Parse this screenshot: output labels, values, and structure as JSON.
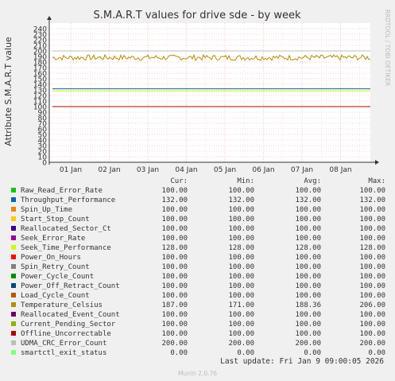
{
  "chart_data": {
    "type": "line",
    "title": "S.M.A.R.T values for drive sde - by week",
    "ylabel": "Attribute S.M.A.R.T value",
    "ylim": [
      0,
      250
    ],
    "yticks": [
      0,
      10,
      20,
      30,
      40,
      50,
      60,
      70,
      80,
      90,
      100,
      110,
      120,
      130,
      140,
      150,
      160,
      170,
      180,
      190,
      200,
      210,
      220,
      230,
      240
    ],
    "xticks": [
      "01 Jan",
      "02 Jan",
      "03 Jan",
      "04 Jan",
      "05 Jan",
      "06 Jan",
      "07 Jan",
      "08 Jan"
    ],
    "grid": true,
    "series": [
      {
        "name": "Raw_Read_Error_Rate",
        "color": "#00cc00",
        "cur": "100.00",
        "min": "100.00",
        "avg": "100.00",
        "max": "100.00",
        "level": 100
      },
      {
        "name": "Throughput_Performance",
        "color": "#0066b3",
        "cur": "132.00",
        "min": "132.00",
        "avg": "132.00",
        "max": "132.00",
        "level": 132
      },
      {
        "name": "Spin_Up_Time",
        "color": "#ff8000",
        "cur": "100.00",
        "min": "100.00",
        "avg": "100.00",
        "max": "100.00",
        "level": 100
      },
      {
        "name": "Start_Stop_Count",
        "color": "#ffcc00",
        "cur": "100.00",
        "min": "100.00",
        "avg": "100.00",
        "max": "100.00",
        "level": 100
      },
      {
        "name": "Reallocated_Sector_Ct",
        "color": "#330099",
        "cur": "100.00",
        "min": "100.00",
        "avg": "100.00",
        "max": "100.00",
        "level": 100
      },
      {
        "name": "Seek_Error_Rate",
        "color": "#990099",
        "cur": "100.00",
        "min": "100.00",
        "avg": "100.00",
        "max": "100.00",
        "level": 100
      },
      {
        "name": "Seek_Time_Performance",
        "color": "#ccff00",
        "cur": "128.00",
        "min": "128.00",
        "avg": "128.00",
        "max": "128.00",
        "level": 128
      },
      {
        "name": "Power_On_Hours",
        "color": "#ff0000",
        "cur": "100.00",
        "min": "100.00",
        "avg": "100.00",
        "max": "100.00",
        "level": 100
      },
      {
        "name": "Spin_Retry_Count",
        "color": "#808080",
        "cur": "100.00",
        "min": "100.00",
        "avg": "100.00",
        "max": "100.00",
        "level": 100
      },
      {
        "name": "Power_Cycle_Count",
        "color": "#008f00",
        "cur": "100.00",
        "min": "100.00",
        "avg": "100.00",
        "max": "100.00",
        "level": 100
      },
      {
        "name": "Power_Off_Retract_Count",
        "color": "#00487d",
        "cur": "100.00",
        "min": "100.00",
        "avg": "100.00",
        "max": "100.00",
        "level": 100
      },
      {
        "name": "Load_Cycle_Count",
        "color": "#b35a00",
        "cur": "100.00",
        "min": "100.00",
        "avg": "100.00",
        "max": "100.00",
        "level": 100
      },
      {
        "name": "Temperature_Celsius",
        "color": "#b38f00",
        "cur": "187.00",
        "min": "171.00",
        "avg": "188.36",
        "max": "206.00",
        "level": 188
      },
      {
        "name": "Reallocated_Event_Count",
        "color": "#6b006b",
        "cur": "100.00",
        "min": "100.00",
        "avg": "100.00",
        "max": "100.00",
        "level": 100
      },
      {
        "name": "Current_Pending_Sector",
        "color": "#8fb300",
        "cur": "100.00",
        "min": "100.00",
        "avg": "100.00",
        "max": "100.00",
        "level": 100
      },
      {
        "name": "Offline_Uncorrectable",
        "color": "#b30000",
        "cur": "100.00",
        "min": "100.00",
        "avg": "100.00",
        "max": "100.00",
        "level": 100
      },
      {
        "name": "UDMA_CRC_Error_Count",
        "color": "#bebebe",
        "cur": "200.00",
        "min": "200.00",
        "avg": "200.00",
        "max": "200.00",
        "level": 200
      },
      {
        "name": "smartctl_exit_status",
        "color": "#80ff80",
        "cur": "0.00",
        "min": "0.00",
        "avg": "0.00",
        "max": "0.00",
        "level": 0
      }
    ]
  },
  "legend_headers": {
    "cur": "Cur:",
    "min": "Min:",
    "avg": "Avg:",
    "max": "Max:"
  },
  "side_label": "RRDTOOL / TOBI OETIKER",
  "last_update": "Last update: Fri Jan  9 09:00:05 2026",
  "version": "Munin 2.0.76"
}
